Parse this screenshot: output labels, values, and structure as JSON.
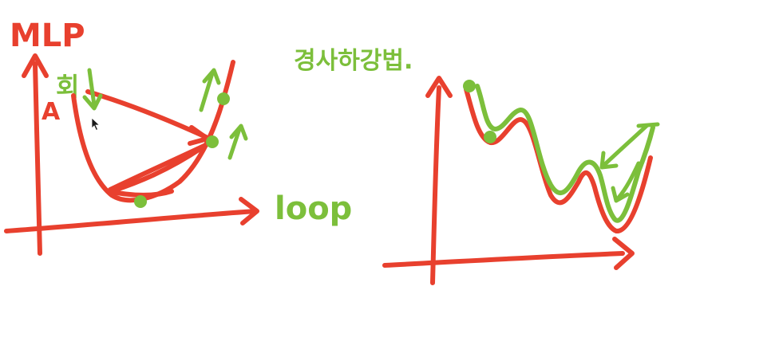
{
  "colors": {
    "red": "#e8402e",
    "green": "#7cbf3b",
    "cursor": "#1a1a1a"
  },
  "left_panel": {
    "title": "MLP",
    "label_a": "A",
    "label_korean": "회",
    "x_label": "loop"
  },
  "right_panel": {
    "title": "경사하강법."
  }
}
